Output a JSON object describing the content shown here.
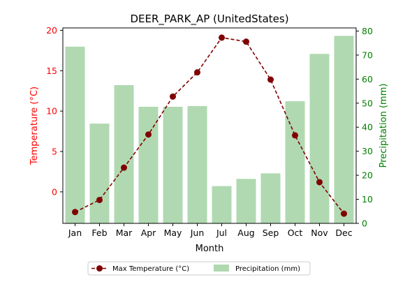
{
  "chart_data": {
    "type": "bar+line",
    "title": "DEER_PARK_AP (UnitedStates)",
    "xlabel": "Month",
    "categories": [
      "Jan",
      "Feb",
      "Mar",
      "Apr",
      "May",
      "Jun",
      "Jul",
      "Aug",
      "Sep",
      "Oct",
      "Nov",
      "Dec"
    ],
    "y_left": {
      "label": "Temperature (°C)",
      "color": "#ff0000",
      "ticks": [
        0,
        5,
        10,
        15,
        20
      ],
      "lim": [
        -3.9,
        20.3
      ]
    },
    "y_right": {
      "label": "Precipitation (mm)",
      "color": "#008000",
      "ticks": [
        0,
        10,
        20,
        30,
        40,
        50,
        60,
        70,
        80
      ],
      "lim": [
        0,
        81.3
      ]
    },
    "series": [
      {
        "name": "Max Temperature (°C)",
        "type": "line",
        "axis": "left",
        "color": "#800000",
        "style": "dashed-circle-markers",
        "values": [
          -2.5,
          -1.0,
          3.0,
          7.1,
          11.8,
          14.8,
          19.1,
          18.6,
          13.9,
          7.0,
          1.2,
          -2.7
        ]
      },
      {
        "name": "Precipitation (mm)",
        "type": "bar",
        "axis": "right",
        "color": "#b0d9b1",
        "values": [
          73.5,
          41.5,
          57.5,
          48.5,
          48.5,
          48.8,
          15.5,
          18.5,
          20.8,
          50.8,
          70.5,
          78.0
        ]
      }
    ],
    "legend_position": "bottom-center",
    "grid": false
  }
}
